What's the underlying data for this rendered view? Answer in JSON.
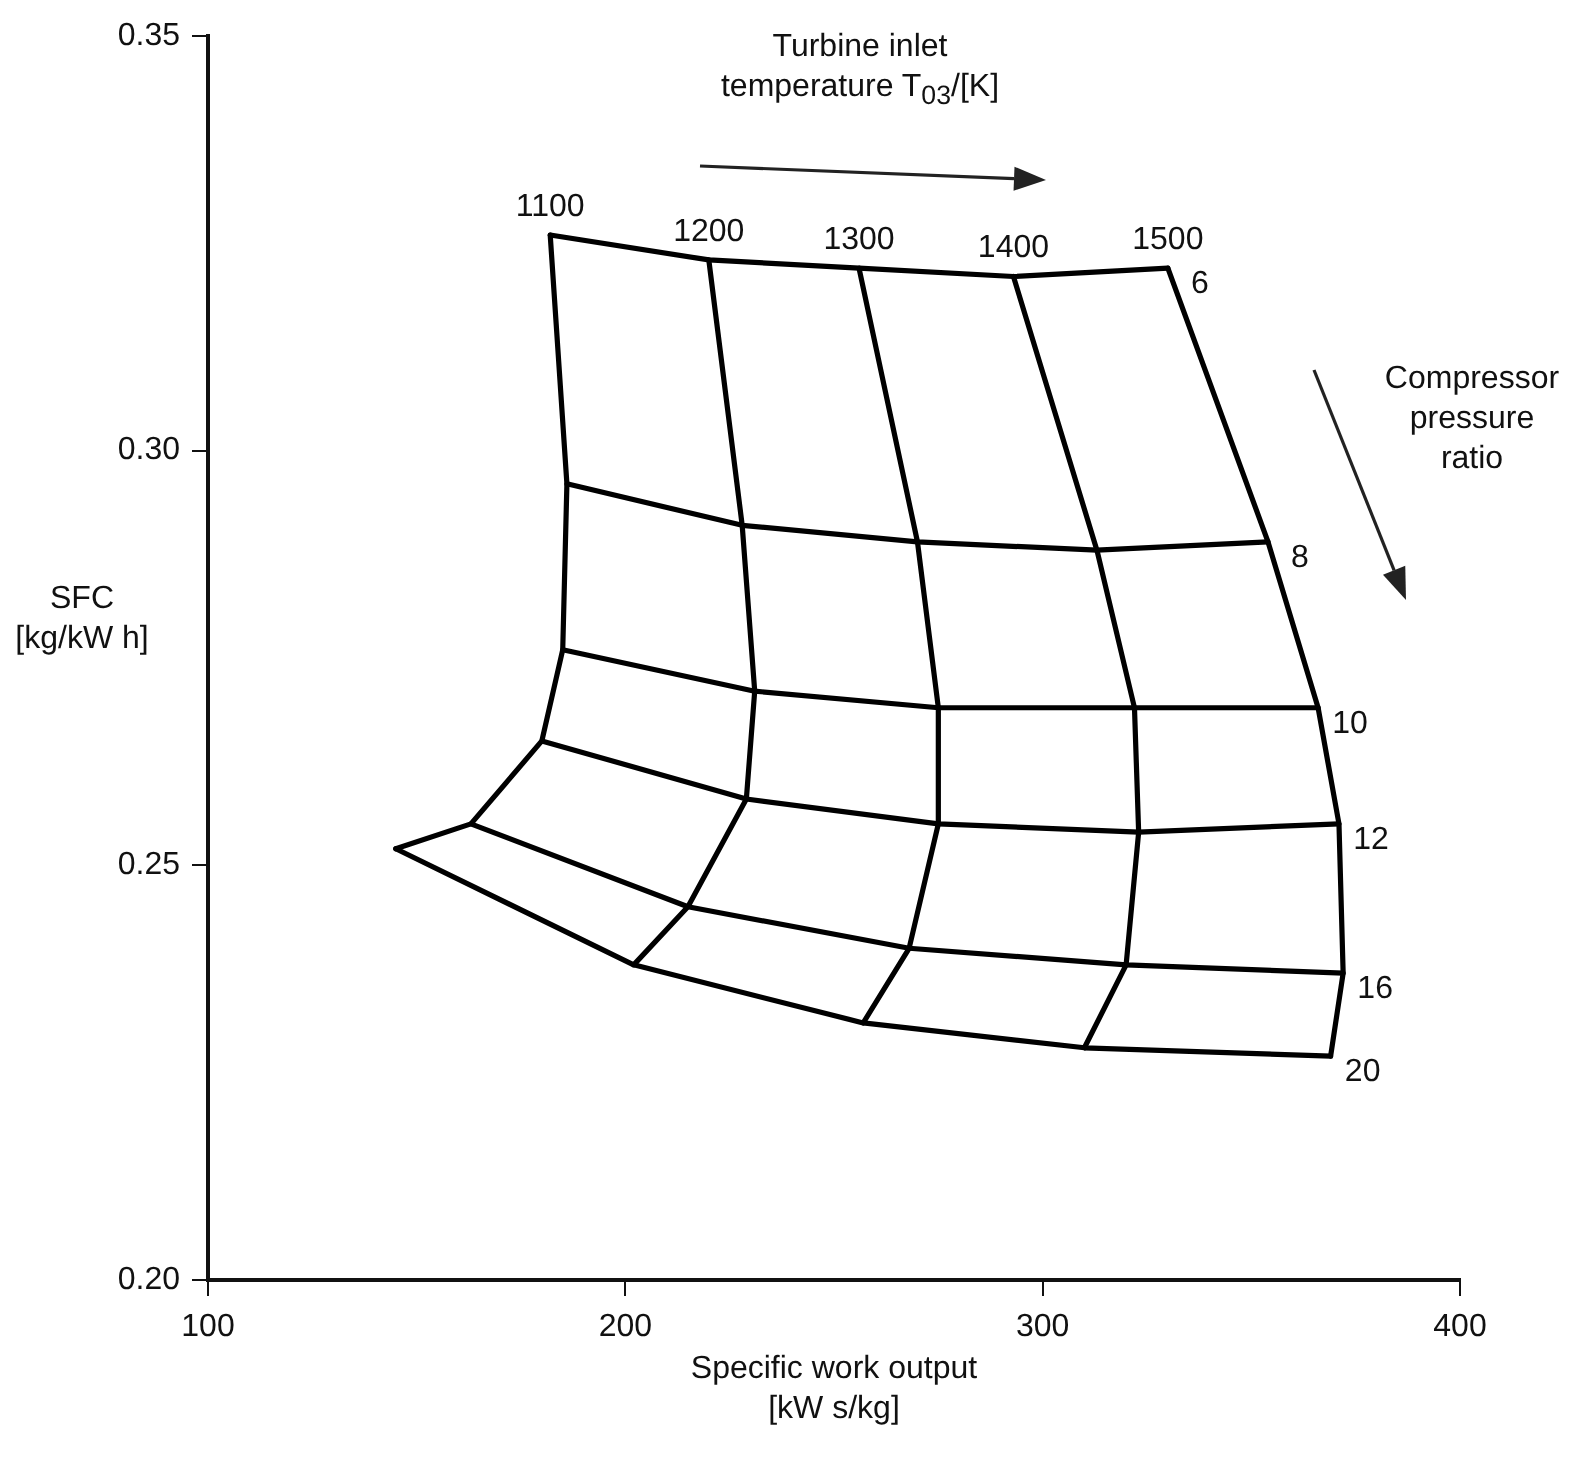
{
  "chart_data": {
    "type": "line",
    "xlabel": "Specific work output [kW s/kg]",
    "ylabel": "SFC [kg/kW h]",
    "annotations": [
      "Turbine inlet temperature T$_{03}$/[K]",
      "Compressor pressure ratio"
    ],
    "xlim": [
      100,
      400
    ],
    "xticks": [
      100,
      200,
      300,
      400
    ],
    "ylim": [
      0.2,
      0.35
    ],
    "yticks": [
      {
        "value": 0.2,
        "label": "0.20"
      },
      {
        "value": 0.25,
        "label": "0.25"
      },
      {
        "value": 0.3,
        "label": "0.30"
      },
      {
        "value": 0.35,
        "label": "0.35"
      }
    ],
    "legend": false,
    "marker": "none",
    "line_style": "solid",
    "series": [
      {
        "name": "1100",
        "color": "#000000",
        "x": [
          145,
          163,
          180,
          185,
          186,
          182
        ],
        "values": [
          0.252,
          0.255,
          0.265,
          0.276,
          0.296,
          0.326
        ]
      },
      {
        "name": "1200",
        "color": "#000000",
        "x": [
          202,
          215,
          229,
          231,
          228,
          220
        ],
        "values": [
          0.238,
          0.245,
          0.258,
          0.271,
          0.291,
          0.323
        ]
      },
      {
        "name": "1300",
        "color": "#000000",
        "x": [
          257,
          268,
          275,
          275,
          270,
          256
        ],
        "values": [
          0.231,
          0.24,
          0.255,
          0.269,
          0.289,
          0.322
        ]
      },
      {
        "name": "1400",
        "color": "#000000",
        "x": [
          310,
          320,
          323,
          322,
          313,
          293
        ],
        "values": [
          0.228,
          0.238,
          0.254,
          0.269,
          0.288,
          0.321
        ]
      },
      {
        "name": "1500",
        "color": "#000000",
        "x": [
          369,
          372,
          371,
          366,
          354,
          330
        ],
        "values": [
          0.227,
          0.237,
          0.255,
          0.269,
          0.289,
          0.322
        ]
      },
      {
        "name": "6",
        "color": "#000000",
        "x": [
          182,
          220,
          256,
          293,
          330
        ],
        "values": [
          0.326,
          0.323,
          0.322,
          0.321,
          0.322
        ]
      },
      {
        "name": "8",
        "color": "#000000",
        "x": [
          186,
          228,
          270,
          313,
          354
        ],
        "values": [
          0.296,
          0.291,
          0.289,
          0.288,
          0.289
        ]
      },
      {
        "name": "10",
        "color": "#000000",
        "x": [
          185,
          231,
          275,
          322,
          366
        ],
        "values": [
          0.276,
          0.271,
          0.269,
          0.269,
          0.269
        ]
      },
      {
        "name": "12",
        "color": "#000000",
        "x": [
          180,
          229,
          275,
          323,
          371
        ],
        "values": [
          0.265,
          0.258,
          0.255,
          0.254,
          0.255
        ]
      },
      {
        "name": "16",
        "color": "#000000",
        "x": [
          163,
          215,
          268,
          320,
          372
        ],
        "values": [
          0.255,
          0.245,
          0.24,
          0.238,
          0.237
        ]
      },
      {
        "name": "20",
        "color": "#000000",
        "x": [
          145,
          202,
          257,
          310,
          369
        ],
        "values": [
          0.252,
          0.238,
          0.231,
          0.228,
          0.227
        ]
      }
    ]
  }
}
